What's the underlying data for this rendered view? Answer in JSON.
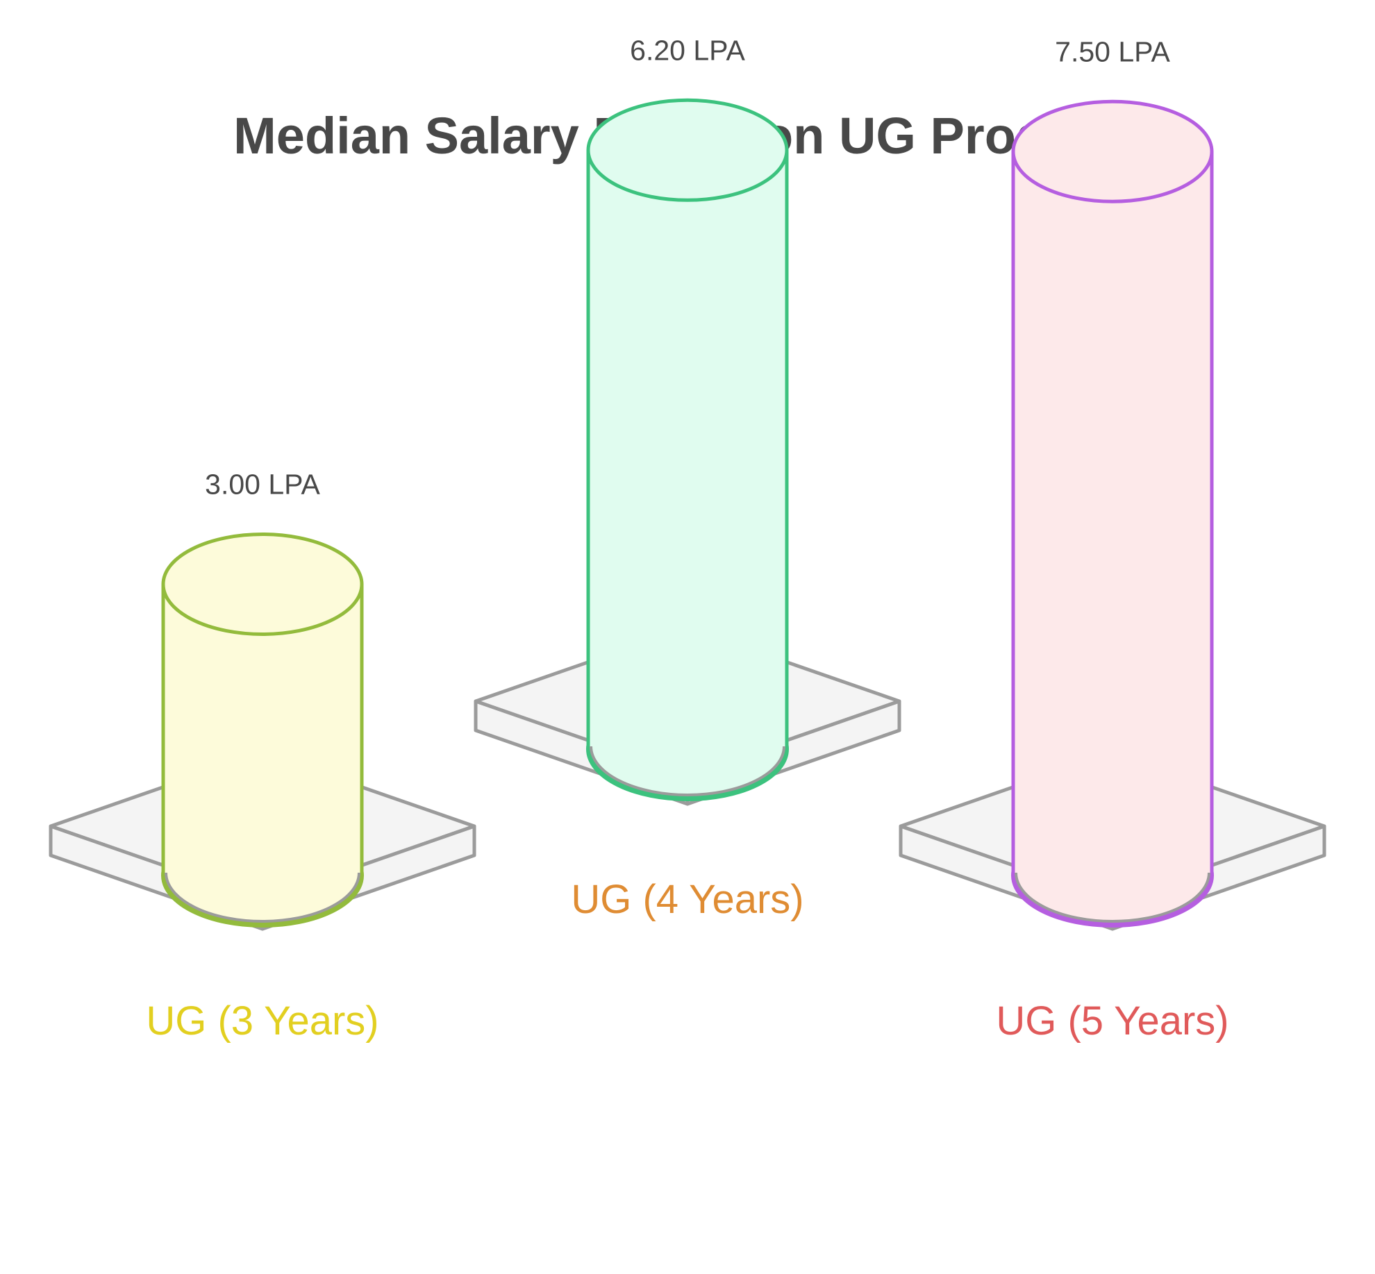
{
  "chart_data": {
    "type": "bar",
    "title": "Median Salary Based on UG Program",
    "categories": [
      "UG (3 Years)",
      "UG (4 Years)",
      "UG (5 Years)"
    ],
    "values": [
      3.0,
      6.2,
      7.5
    ],
    "value_labels": [
      "3.00 LPA",
      "6.20 LPA",
      "7.50 LPA"
    ],
    "unit": "LPA",
    "xlabel": "",
    "ylabel": "",
    "grid": false,
    "legend": "none",
    "colors": {
      "cylinder_fill": [
        "#fdfbda",
        "#e0fcef",
        "#fde9ea"
      ],
      "cylinder_stroke": [
        "#93bb3c",
        "#3cc27e",
        "#b55ee0"
      ],
      "category_text": [
        "#e2cf20",
        "#df8c33",
        "#e05a5a"
      ],
      "platform_fill": "#f4f4f4",
      "platform_stroke": "#9b9b9b",
      "text": "#484848"
    }
  }
}
